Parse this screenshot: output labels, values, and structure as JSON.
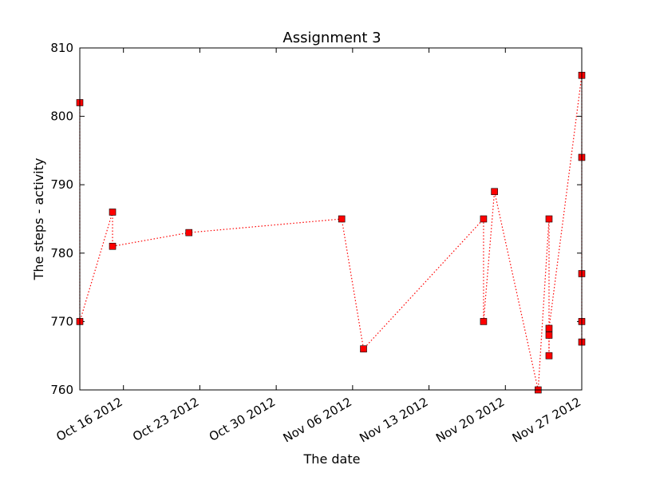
{
  "chart_data": {
    "type": "line",
    "title": "Assignment 3",
    "x_label": "The date",
    "y_label": "The steps - activity",
    "x": [
      "2012-10-12",
      "2012-10-12",
      "2012-10-15",
      "2012-10-15",
      "2012-10-22",
      "2012-11-05",
      "2012-11-07",
      "2012-11-18",
      "2012-11-18",
      "2012-11-19",
      "2012-11-23",
      "2012-11-24",
      "2012-11-24",
      "2012-11-24",
      "2012-11-24",
      "2012-11-27",
      "2012-11-27",
      "2012-11-27",
      "2012-11-27",
      "2012-11-27"
    ],
    "values": [
      802,
      770,
      786,
      781,
      783,
      785,
      766,
      785,
      770,
      789,
      760,
      785,
      765,
      768,
      769,
      806,
      794,
      777,
      770,
      767
    ],
    "color": "#ff0000",
    "marker_edge_color": "#000000",
    "xlim": [
      "2012-10-12",
      "2012-11-27"
    ],
    "xticks": [
      {
        "value": "2012-10-16",
        "label": "Oct 16 2012"
      },
      {
        "value": "2012-10-23",
        "label": "Oct 23 2012"
      },
      {
        "value": "2012-10-30",
        "label": "Oct 30 2012"
      },
      {
        "value": "2012-11-06",
        "label": "Nov 06 2012"
      },
      {
        "value": "2012-11-13",
        "label": "Nov 13 2012"
      },
      {
        "value": "2012-11-20",
        "label": "Nov 20 2012"
      },
      {
        "value": "2012-11-27",
        "label": "Nov 27 2012"
      }
    ],
    "ylim": [
      760,
      810
    ],
    "yticks": [
      760,
      770,
      780,
      790,
      800,
      810
    ]
  }
}
